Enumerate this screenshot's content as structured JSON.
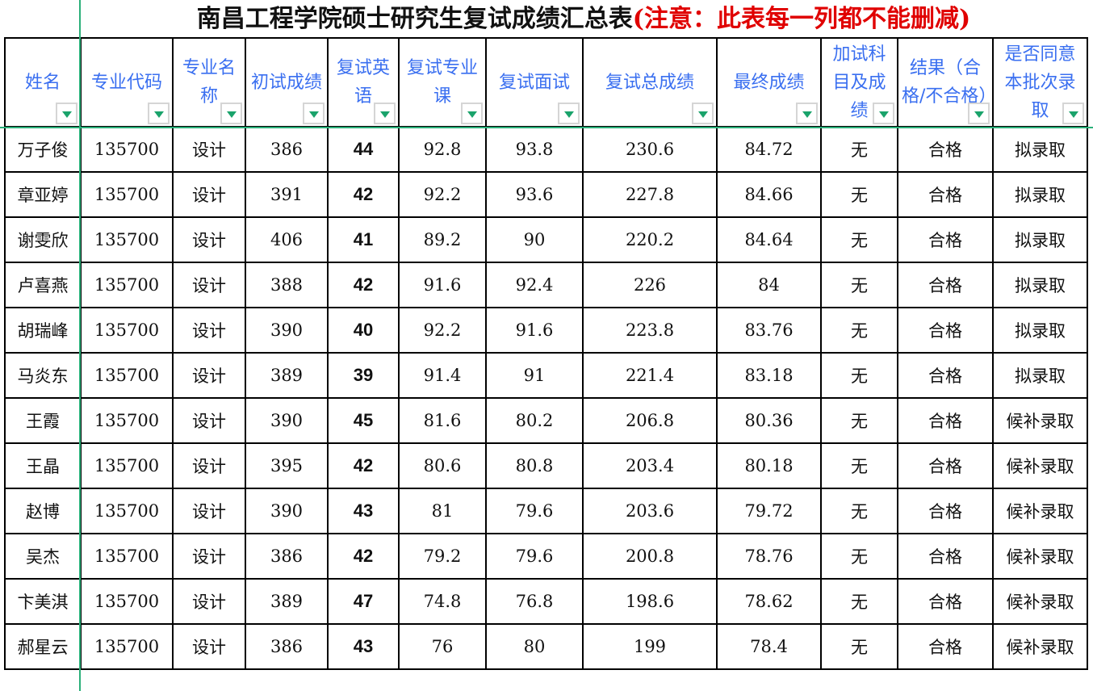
{
  "title": {
    "main": "南昌工程学院硕士研究生复试成绩汇总表",
    "warning": "(注意：此表每一列都不能删减)"
  },
  "colors": {
    "header_text": "#3a6ff0",
    "warning": "#e00000",
    "freeze_line": "#2bb07a",
    "filter_arrow": "#1aa36b"
  },
  "columns": [
    "姓名",
    "专业代码",
    "专业名称",
    "初试成绩",
    "复试英语",
    "复试专业课",
    "复试面试",
    "复试总成绩",
    "最终成绩",
    "加试科目及成绩",
    "结果（合格/不合格）",
    "是否同意本批次录取"
  ],
  "rows": [
    [
      "万子俊",
      "135700",
      "设计",
      "386",
      "44",
      "92.8",
      "93.8",
      "230.6",
      "84.72",
      "无",
      "合格",
      "拟录取"
    ],
    [
      "章亚婷",
      "135700",
      "设计",
      "391",
      "42",
      "92.2",
      "93.6",
      "227.8",
      "84.66",
      "无",
      "合格",
      "拟录取"
    ],
    [
      "谢雯欣",
      "135700",
      "设计",
      "406",
      "41",
      "89.2",
      "90",
      "220.2",
      "84.64",
      "无",
      "合格",
      "拟录取"
    ],
    [
      "卢喜燕",
      "135700",
      "设计",
      "388",
      "42",
      "91.6",
      "92.4",
      "226",
      "84",
      "无",
      "合格",
      "拟录取"
    ],
    [
      "胡瑞峰",
      "135700",
      "设计",
      "390",
      "40",
      "92.2",
      "91.6",
      "223.8",
      "83.76",
      "无",
      "合格",
      "拟录取"
    ],
    [
      "马炎东",
      "135700",
      "设计",
      "389",
      "39",
      "91.4",
      "91",
      "221.4",
      "83.18",
      "无",
      "合格",
      "拟录取"
    ],
    [
      "王霞",
      "135700",
      "设计",
      "390",
      "45",
      "81.6",
      "80.2",
      "206.8",
      "80.36",
      "无",
      "合格",
      "候补录取"
    ],
    [
      "王晶",
      "135700",
      "设计",
      "395",
      "42",
      "80.6",
      "80.8",
      "203.4",
      "80.18",
      "无",
      "合格",
      "候补录取"
    ],
    [
      "赵博",
      "135700",
      "设计",
      "390",
      "43",
      "81",
      "79.6",
      "203.6",
      "79.72",
      "无",
      "合格",
      "候补录取"
    ],
    [
      "吴杰",
      "135700",
      "设计",
      "386",
      "42",
      "79.2",
      "79.6",
      "200.8",
      "78.76",
      "无",
      "合格",
      "候补录取"
    ],
    [
      "卞美淇",
      "135700",
      "设计",
      "389",
      "47",
      "74.8",
      "76.8",
      "198.6",
      "78.62",
      "无",
      "合格",
      "候补录取"
    ],
    [
      "郝星云",
      "135700",
      "设计",
      "386",
      "43",
      "76",
      "80",
      "199",
      "78.4",
      "无",
      "合格",
      "候补录取"
    ]
  ]
}
